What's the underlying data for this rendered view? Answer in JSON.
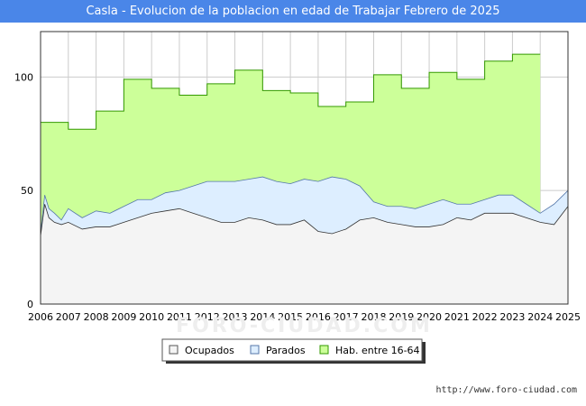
{
  "chart_data": {
    "type": "area",
    "title": "Casla - Evolucion de la poblacion en edad de Trabajar Febrero de 2025",
    "xlabel": "",
    "ylabel": "",
    "ylim": [
      0,
      120
    ],
    "xlim": [
      2006,
      2025
    ],
    "y_ticks": [
      0,
      50,
      100
    ],
    "x_ticks": [
      "2006",
      "2007",
      "2008",
      "2009",
      "2010",
      "2011",
      "2012",
      "2013",
      "2014",
      "2015",
      "2016",
      "2017",
      "2018",
      "2019",
      "2020",
      "2021",
      "2022",
      "2023",
      "2024",
      "2025"
    ],
    "grid": true,
    "legend_position": "bottom",
    "series": [
      {
        "name": "Hab. entre 16-64",
        "color": "#ccff99",
        "line_color": "#339900",
        "x": [
          2006,
          2007,
          2008,
          2009,
          2010,
          2011,
          2012,
          2013,
          2014,
          2015,
          2016,
          2017,
          2018,
          2019,
          2020,
          2021,
          2022,
          2023
        ],
        "values": [
          80,
          77,
          85,
          99,
          95,
          92,
          97,
          103,
          94,
          93,
          87,
          89,
          101,
          95,
          102,
          99,
          107,
          110
        ]
      },
      {
        "name": "Parados",
        "color": "#ddeeff",
        "line_color": "#5577aa",
        "x": [
          2006.0,
          2006.15,
          2006.3,
          2006.5,
          2006.75,
          2007.0,
          2007.5,
          2008.0,
          2008.5,
          2009.0,
          2009.5,
          2010.0,
          2010.5,
          2011.0,
          2011.5,
          2012.0,
          2012.5,
          2013.0,
          2013.5,
          2014.0,
          2014.5,
          2015.0,
          2015.5,
          2016.0,
          2016.5,
          2017.0,
          2017.5,
          2018.0,
          2018.5,
          2019.0,
          2019.5,
          2020.0,
          2020.5,
          2021.0,
          2021.5,
          2022.0,
          2022.5,
          2023.0,
          2023.5,
          2024.0,
          2024.5,
          2025.0
        ],
        "values": [
          31,
          48,
          42,
          40,
          37,
          42,
          38,
          41,
          40,
          43,
          46,
          46,
          49,
          50,
          52,
          54,
          54,
          54,
          55,
          56,
          54,
          53,
          55,
          54,
          56,
          55,
          52,
          45,
          43,
          43,
          42,
          44,
          46,
          44,
          44,
          46,
          48,
          48,
          44,
          40,
          44,
          50
        ]
      },
      {
        "name": "Ocupados",
        "color": "#f4f4f4",
        "line_color": "#333333",
        "x": [
          2006.0,
          2006.15,
          2006.3,
          2006.5,
          2006.75,
          2007.0,
          2007.5,
          2008.0,
          2008.5,
          2009.0,
          2009.5,
          2010.0,
          2010.5,
          2011.0,
          2011.5,
          2012.0,
          2012.5,
          2013.0,
          2013.5,
          2014.0,
          2014.5,
          2015.0,
          2015.5,
          2016.0,
          2016.5,
          2017.0,
          2017.5,
          2018.0,
          2018.5,
          2019.0,
          2019.5,
          2020.0,
          2020.5,
          2021.0,
          2021.5,
          2022.0,
          2022.5,
          2023.0,
          2023.5,
          2024.0,
          2024.5,
          2025.0
        ],
        "values": [
          30,
          44,
          38,
          36,
          35,
          36,
          33,
          34,
          34,
          36,
          38,
          40,
          41,
          42,
          40,
          38,
          36,
          36,
          38,
          37,
          35,
          35,
          37,
          32,
          31,
          33,
          37,
          38,
          36,
          35,
          34,
          34,
          35,
          38,
          37,
          40,
          40,
          40,
          38,
          36,
          35,
          43
        ]
      }
    ],
    "legend": [
      "Ocupados",
      "Parados",
      "Hab. entre 16-64"
    ],
    "watermark": "FORO-CIUDAD.COM",
    "source": "http://www.foro-ciudad.com"
  }
}
